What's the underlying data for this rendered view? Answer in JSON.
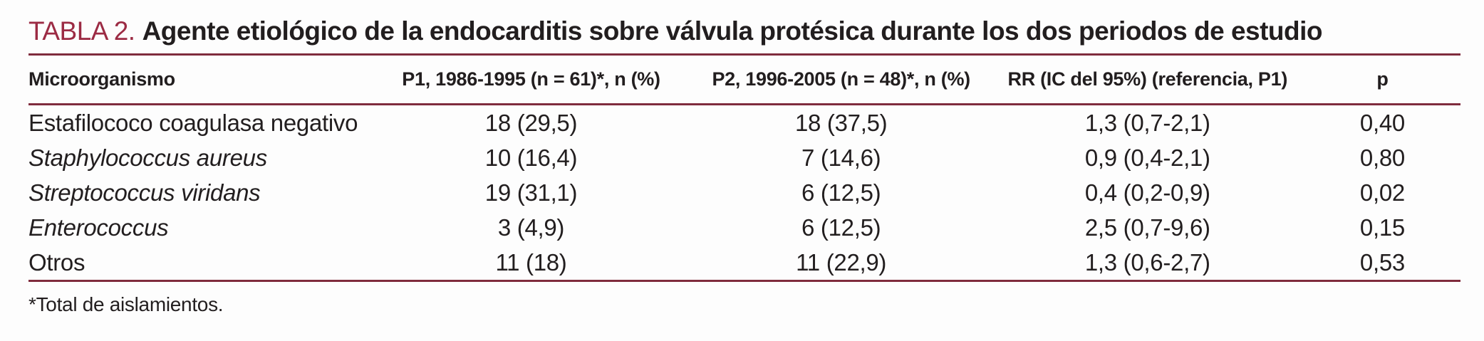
{
  "colors": {
    "title_accent": "#9c2b44",
    "rule": "#7f2c3d",
    "text": "#221e1f",
    "background": "#fdfdfd"
  },
  "title": {
    "label": "TABLA 2.",
    "text": "Agente etiológico de la endocarditis sobre válvula protésica durante los dos periodos de estudio"
  },
  "table": {
    "columns": [
      "Microorganismo",
      "P1, 1986-1995 (n = 61)*, n (%)",
      "P2, 1996-2005 (n = 48)*, n (%)",
      "RR (IC del 95%) (referencia, P1)",
      "p"
    ],
    "rows": [
      {
        "microorganismo": "Estafilococo coagulasa negativo",
        "italic": false,
        "p1": "18 (29,5)",
        "p2": "18 (37,5)",
        "rr": "1,3 (0,7-2,1)",
        "p": "0,40"
      },
      {
        "microorganismo": "Staphylococcus aureus",
        "italic": true,
        "p1": "10 (16,4)",
        "p2": "7 (14,6)",
        "rr": "0,9 (0,4-2,1)",
        "p": "0,80"
      },
      {
        "microorganismo": "Streptococcus viridans",
        "italic": true,
        "p1": "19 (31,1)",
        "p2": "6 (12,5)",
        "rr": "0,4 (0,2-0,9)",
        "p": "0,02"
      },
      {
        "microorganismo": "Enterococcus",
        "italic": true,
        "p1": "3 (4,9)",
        "p2": "6 (12,5)",
        "rr": "2,5 (0,7-9,6)",
        "p": "0,15"
      },
      {
        "microorganismo": "Otros",
        "italic": false,
        "p1": "11 (18)",
        "p2": "11 (22,9)",
        "rr": "1,3 (0,6-2,7)",
        "p": "0,53"
      }
    ]
  },
  "footnote": "*Total de aislamientos."
}
